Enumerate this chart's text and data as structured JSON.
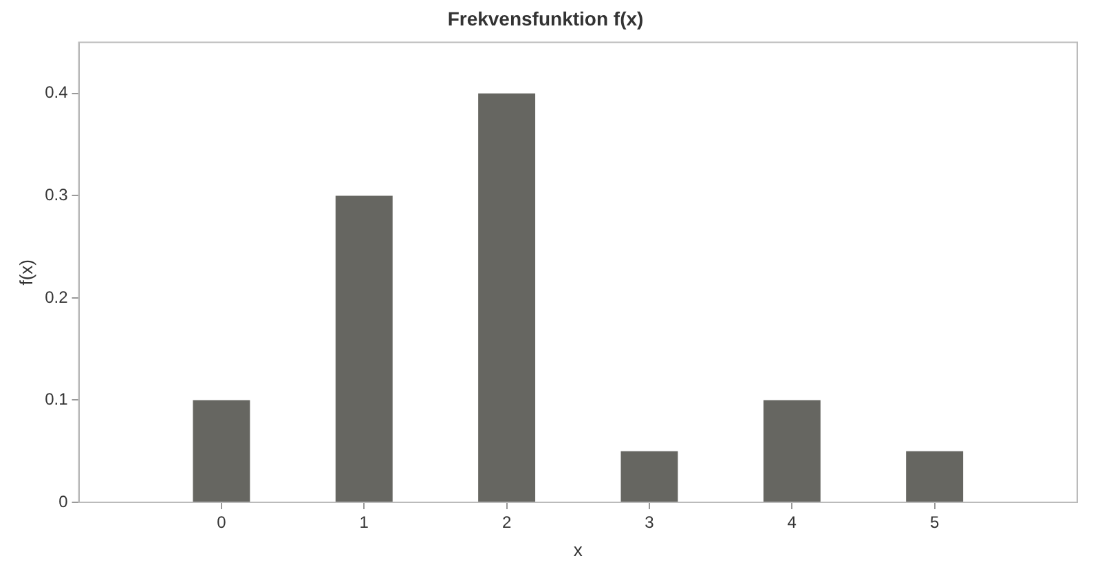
{
  "chart_data": {
    "type": "bar",
    "title": "Frekvensfunktion f(x)",
    "xlabel": "x",
    "ylabel": "f(x)",
    "x": [
      0,
      1,
      2,
      3,
      4,
      5
    ],
    "values": [
      0.1,
      0.3,
      0.4,
      0.05,
      0.1,
      0.05
    ],
    "color": "#666661",
    "xlim": [
      -1,
      6
    ],
    "xticks": [
      0,
      1,
      2,
      3,
      4,
      5
    ],
    "ylim": [
      0,
      0.45
    ],
    "yticks": [
      0,
      0.1,
      0.2,
      0.3,
      0.4
    ],
    "grid": false
  }
}
